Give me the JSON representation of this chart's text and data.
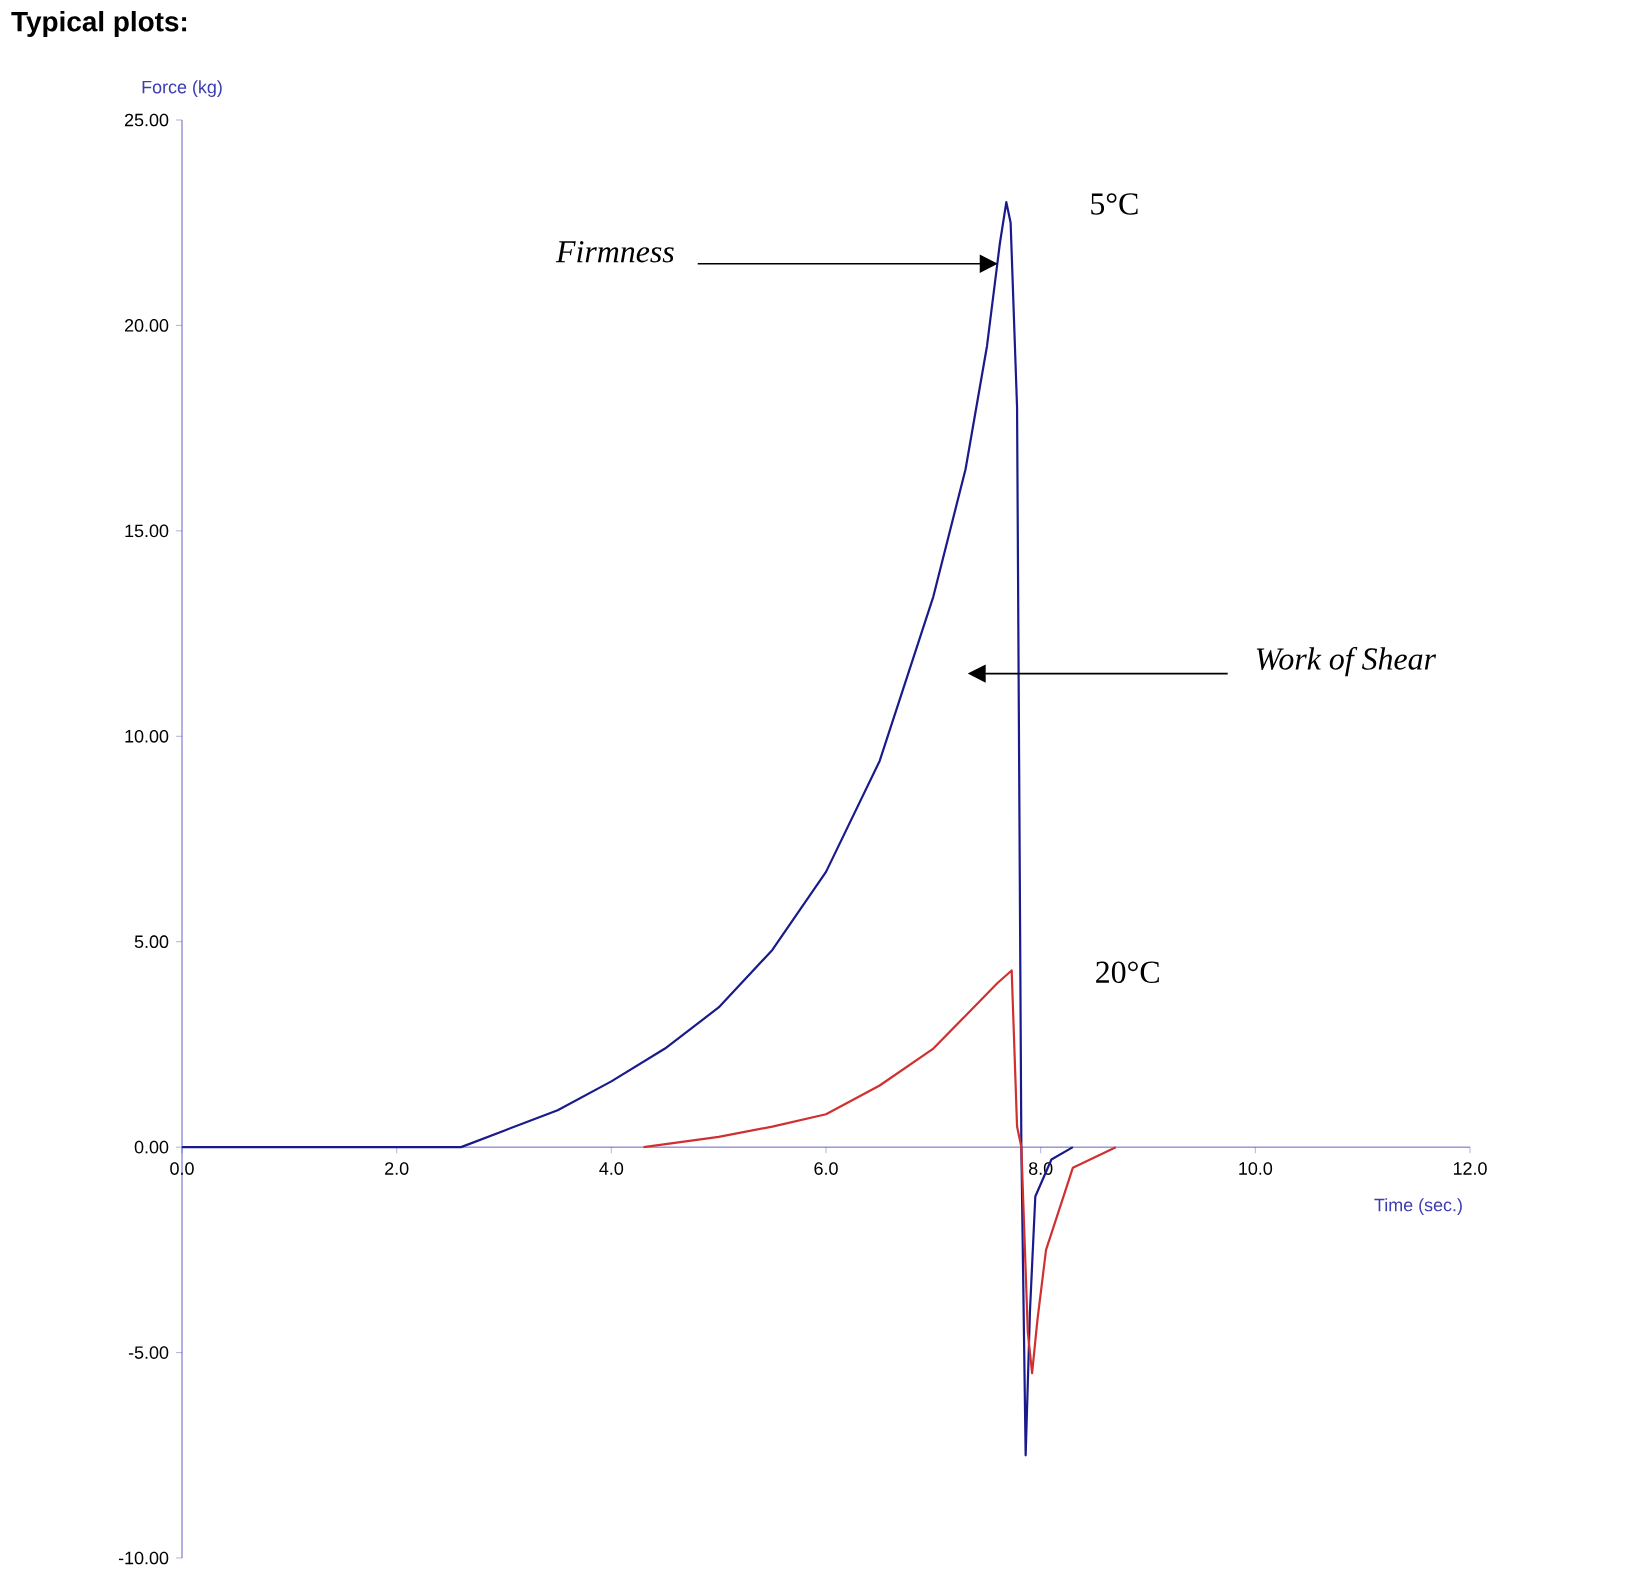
{
  "chart_data": {
    "type": "line",
    "title": "Typical plots:",
    "xlabel": "Time (sec.)",
    "ylabel": "Force  (kg)",
    "xlim": [
      0,
      12
    ],
    "ylim": [
      -10,
      25
    ],
    "xticks": [
      {
        "value": 0,
        "label": "0.0"
      },
      {
        "value": 2,
        "label": "2.0"
      },
      {
        "value": 4,
        "label": "4.0"
      },
      {
        "value": 6,
        "label": "6.0"
      },
      {
        "value": 8,
        "label": "8.0"
      },
      {
        "value": 10,
        "label": "10.0"
      },
      {
        "value": 12,
        "label": "12.0"
      }
    ],
    "yticks": [
      {
        "value": -10,
        "label": "-10.00"
      },
      {
        "value": -5,
        "label": "-5.00"
      },
      {
        "value": 0,
        "label": "0.00"
      },
      {
        "value": 5,
        "label": "5.00"
      },
      {
        "value": 10,
        "label": "10.00"
      },
      {
        "value": 15,
        "label": "15.00"
      },
      {
        "value": 20,
        "label": "20.00"
      },
      {
        "value": 25,
        "label": "25.00"
      }
    ],
    "grid": false,
    "legend": false,
    "marker": "none",
    "line_style": "solid",
    "series": [
      {
        "name": "5°C",
        "color": "#1a1a8c",
        "x": [
          0,
          2.6,
          3,
          3.5,
          4,
          4.5,
          5,
          5.5,
          6,
          6.5,
          7,
          7.3,
          7.5,
          7.62,
          7.68,
          7.72,
          7.78,
          7.82,
          7.86,
          7.9,
          7.95,
          8.1,
          8.3
        ],
        "values": [
          0,
          0,
          0.4,
          0.9,
          1.6,
          2.4,
          3.4,
          4.8,
          6.7,
          9.4,
          13.4,
          16.5,
          19.5,
          22,
          23,
          22.5,
          18,
          0,
          -7.5,
          -4,
          -1.2,
          -0.3,
          0
        ]
      },
      {
        "name": "20°C",
        "color": "#d03030",
        "x": [
          4.3,
          5,
          5.5,
          6,
          6.5,
          7,
          7.3,
          7.6,
          7.73,
          7.78,
          7.82,
          7.88,
          7.92,
          7.97,
          8.05,
          8.2,
          8.3,
          8.7
        ],
        "values": [
          0,
          0.25,
          0.5,
          0.8,
          1.5,
          2.4,
          3.2,
          4,
          4.3,
          0.5,
          0,
          -4.5,
          -5.5,
          -4.2,
          -2.5,
          -1.3,
          -0.5,
          0
        ]
      }
    ],
    "annotations": [
      {
        "text": "Firmness",
        "x": 7.6,
        "y": 21.5
      },
      "Work of Shear"
    ]
  }
}
